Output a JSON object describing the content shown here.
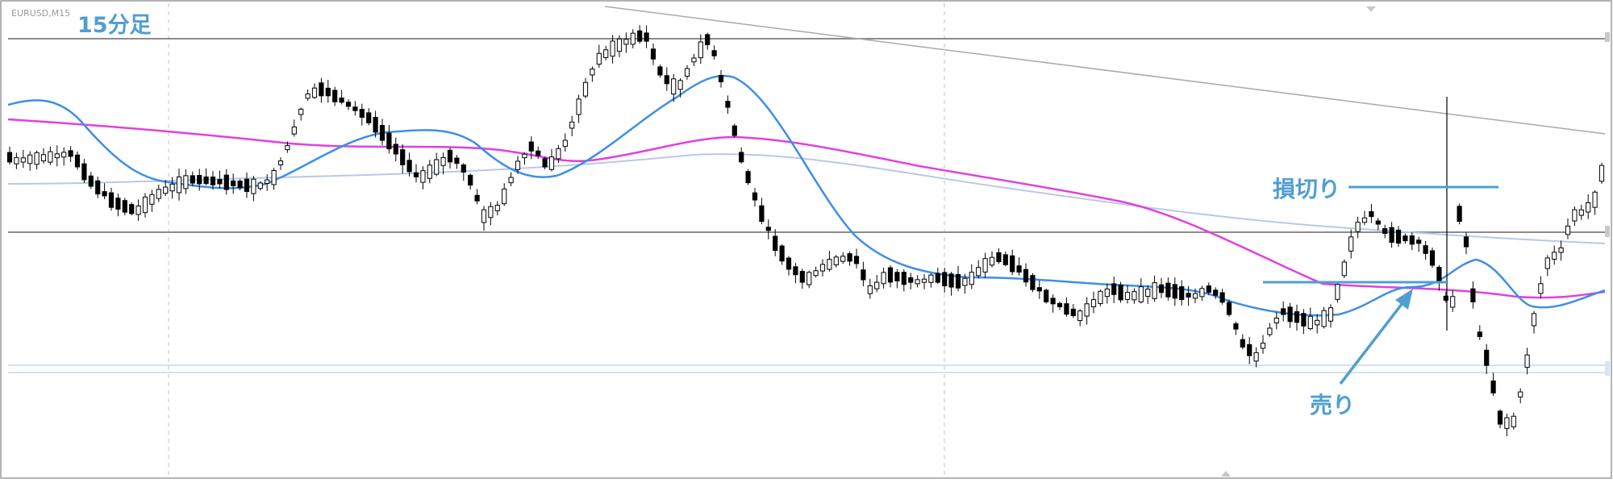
{
  "header": {
    "symbol_label": "EURUSD,M15",
    "timeframe_label": "15分足"
  },
  "annotations": {
    "stop_loss_label": "損切り",
    "sell_label": "売り"
  },
  "colors": {
    "background": "#ffffff",
    "candle_stroke": "#000000",
    "bull_fill": "#ffffff",
    "bear_fill": "#000000",
    "ma_fast": "#3d8fe6",
    "ma_slow": "#e040e0",
    "ma_long": "#b9c8e8",
    "trendline": "#a9a9a9",
    "horizontal_line": "#8c8c8c",
    "annotation": "#4f9fd0",
    "grid_dashed": "#c0c0c0"
  },
  "chart_data": {
    "type": "candlestick",
    "symbol": "EURUSD",
    "timeframe": "M15",
    "grid": "vertical-dashed",
    "price_range_relative": [
      0,
      1
    ],
    "candles": [],
    "indicators": [
      {
        "name": "",
        "color": "#3d8fe6"
      },
      {
        "name": "",
        "color": "#e040e0"
      },
      {
        "name": "",
        "color": "#b9c8e8"
      }
    ],
    "annotations": [
      {
        "label": "損切り",
        "kind": "stop-loss level"
      },
      {
        "label": "売り",
        "kind": "sell entry arrow"
      }
    ]
  }
}
